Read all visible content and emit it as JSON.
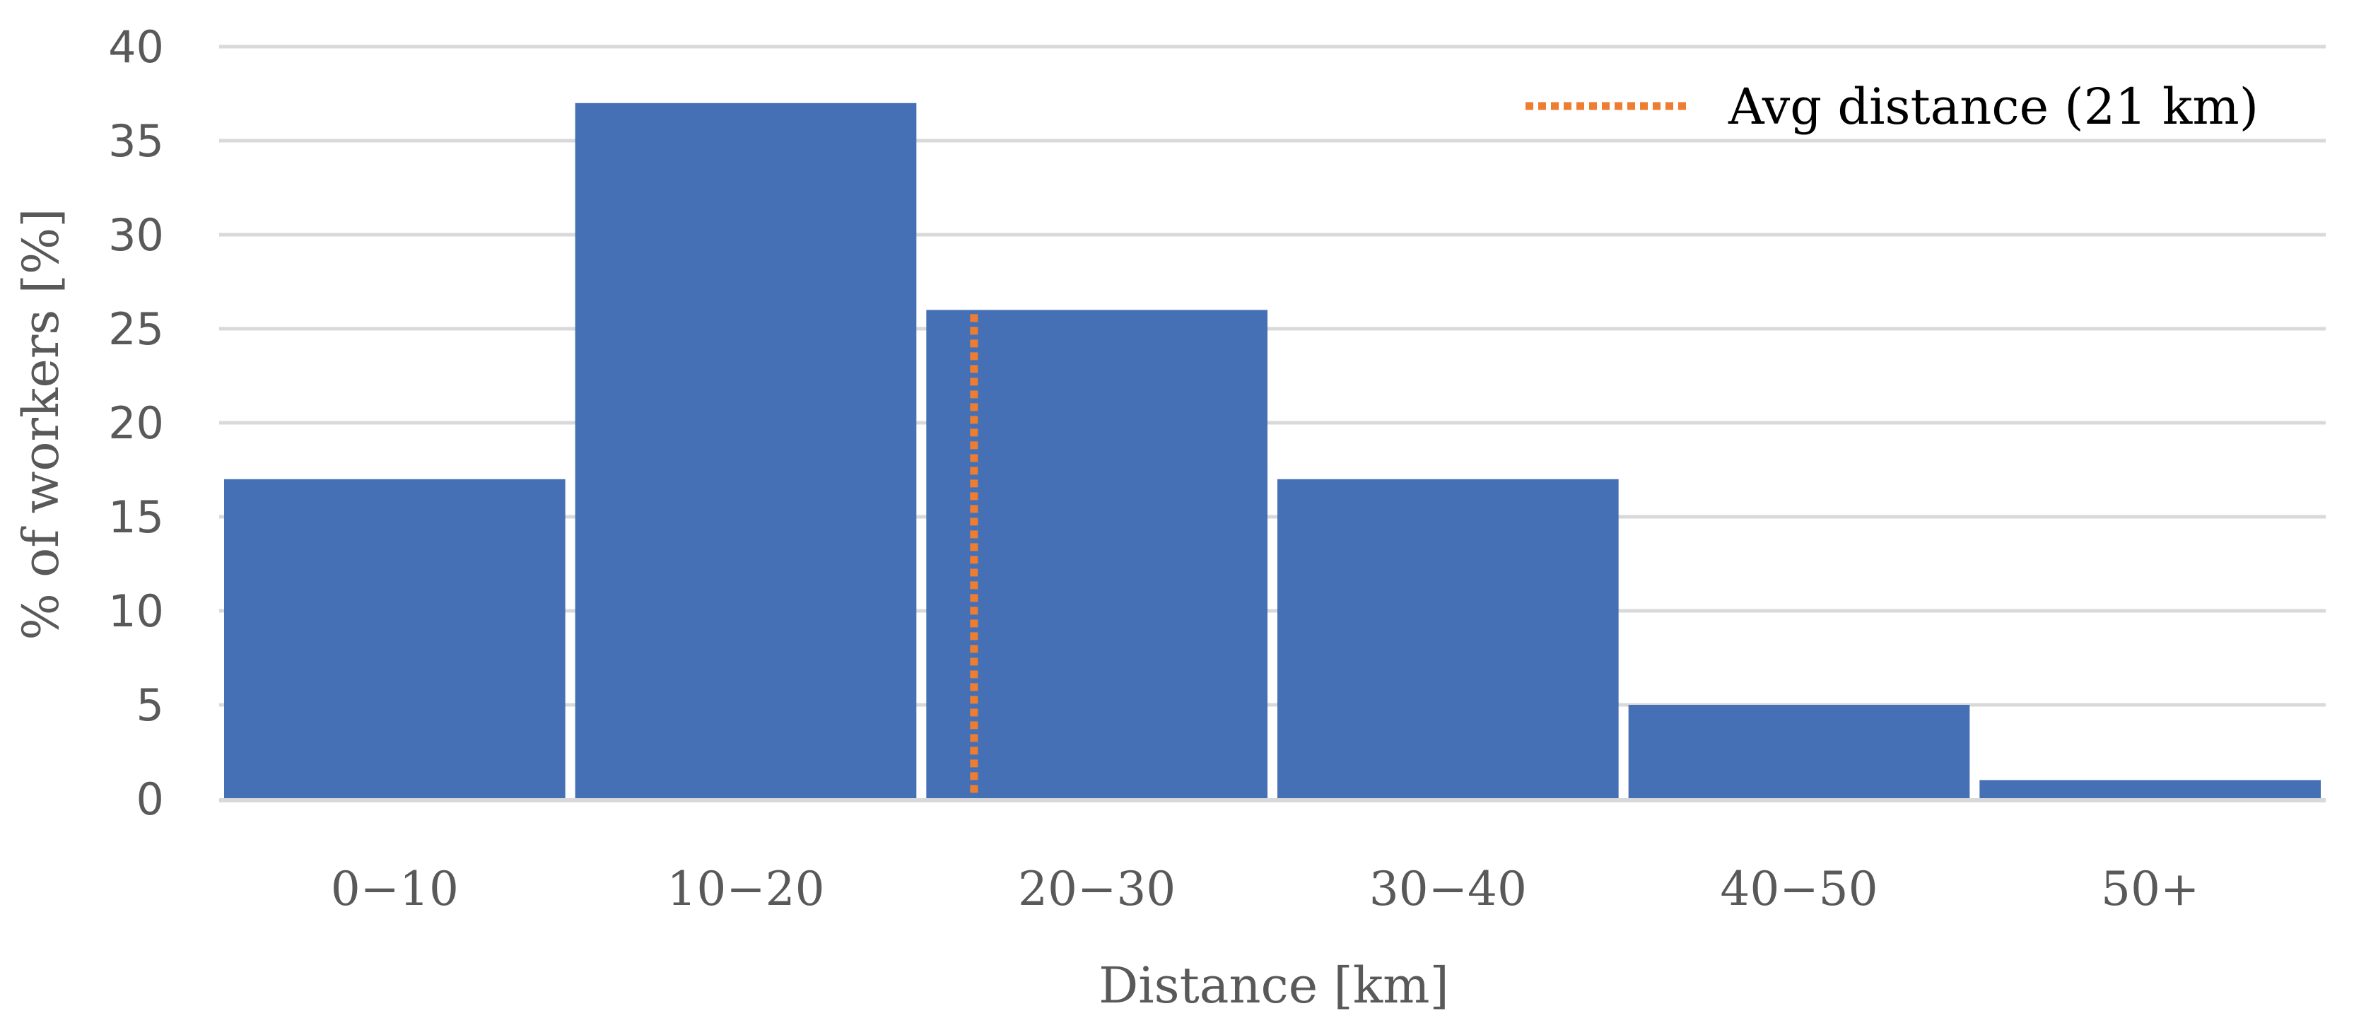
{
  "chart_data": {
    "type": "bar",
    "categories": [
      "0−10",
      "10−20",
      "20−30",
      "30−40",
      "40−50",
      "50+"
    ],
    "values": [
      17,
      37,
      26,
      17,
      5,
      1
    ],
    "xlabel": "Distance [km]",
    "ylabel": "% of workers [%]",
    "ylim": [
      0,
      40
    ],
    "yticks": [
      0,
      5,
      10,
      15,
      20,
      25,
      30,
      35,
      40
    ],
    "grid": true,
    "bar_color": "#4570b5",
    "reference_line": {
      "label": "Avg distance (21 km)",
      "value": 21,
      "color": "#ed7d31",
      "style": "dotted"
    },
    "legend_position": "top-right"
  }
}
